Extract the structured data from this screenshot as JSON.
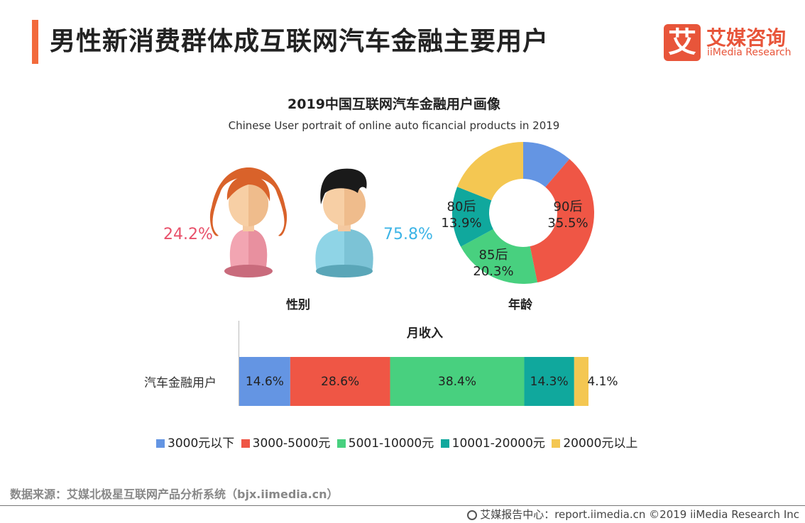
{
  "header": {
    "title": "男性新消费群体成互联网汽车金融主要用户",
    "logo_mark": "艾",
    "logo_cn": "艾媒咨询",
    "logo_en": "iiMedia Research"
  },
  "chart_header": {
    "title": "2019中国互联网汽车金融用户画像",
    "subtitle": "Chinese User portrait of online auto ficancial products in 2019"
  },
  "chart_data": [
    {
      "type": "pictogram",
      "title": "性别",
      "categories": [
        "女",
        "男"
      ],
      "values": [
        24.2,
        75.8
      ],
      "labels": [
        "24.2%",
        "75.8%"
      ],
      "colors": [
        "#e8506a",
        "#3cb4e6"
      ]
    },
    {
      "type": "pie",
      "title": "年龄",
      "donut": true,
      "slices": [
        {
          "name": "segment-blue",
          "value": 11.3,
          "color": "#6495e3",
          "label": "",
          "value_label": ""
        },
        {
          "name": "90后",
          "value": 35.5,
          "color": "#ef5645",
          "label": "90后",
          "value_label": "35.5%"
        },
        {
          "name": "85后",
          "value": 20.3,
          "color": "#48d07f",
          "label": "85后",
          "value_label": "20.3%"
        },
        {
          "name": "80后",
          "value": 13.9,
          "color": "#10a89d",
          "label": "80后",
          "value_label": "13.9%"
        },
        {
          "name": "segment-yellow",
          "value": 19.0,
          "color": "#f4c752",
          "label": "",
          "value_label": ""
        }
      ]
    },
    {
      "type": "bar",
      "orientation": "horizontal",
      "stacked": true,
      "title": "月收入",
      "categories": [
        "汽车金融用户"
      ],
      "series": [
        {
          "name": "3000元以下",
          "values": [
            14.6
          ],
          "label": "14.6%",
          "color": "#6495e3"
        },
        {
          "name": "3000-5000元",
          "values": [
            28.6
          ],
          "label": "28.6%",
          "color": "#ef5645"
        },
        {
          "name": "5001-10000元",
          "values": [
            38.4
          ],
          "label": "38.4%",
          "color": "#48d07f"
        },
        {
          "name": "10001-20000元",
          "values": [
            14.3
          ],
          "label": "14.3%",
          "color": "#10a89d"
        },
        {
          "name": "20000元以上",
          "values": [
            4.1
          ],
          "label": "4.1%",
          "color": "#f4c752"
        }
      ],
      "legend_position": "bottom"
    }
  ],
  "footer": {
    "source": "数据来源：艾媒北极星互联网产品分析系统（bjx.iimedia.cn）",
    "copyright": "艾媒报告中心：report.iimedia.cn  ©2019  iiMedia Research Inc"
  }
}
